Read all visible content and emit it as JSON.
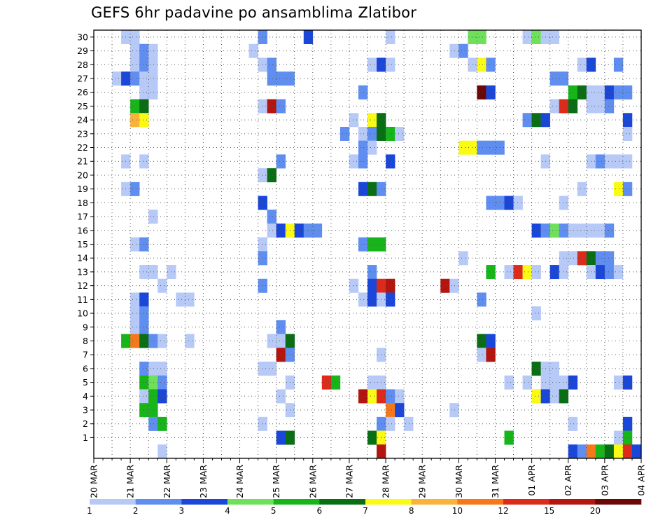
{
  "chart_data": {
    "type": "heatmap",
    "title": "GEFS 6hr padavine po ansamblima Zlatibor",
    "xlabel": "",
    "ylabel": "",
    "x_ticks": [
      "20 MAR",
      "21 MAR",
      "22 MAR",
      "23 MAR",
      "24 MAR",
      "25 MAR",
      "26 MAR",
      "27 MAR",
      "28 MAR",
      "29 MAR",
      "30 MAR",
      "31 MAR",
      "01 APR",
      "02 APR",
      "03 APR",
      "04 APR"
    ],
    "x_range": [
      "20 MAR 00",
      "04 APR 00"
    ],
    "steps_per_day": 4,
    "y_ticks": [
      1,
      2,
      3,
      4,
      5,
      6,
      7,
      8,
      9,
      10,
      11,
      12,
      13,
      14,
      15,
      16,
      17,
      18,
      19,
      20,
      21,
      22,
      23,
      24,
      25,
      26,
      27,
      28,
      29,
      30
    ],
    "y_range": [
      0,
      30
    ],
    "grid": true,
    "legend": {
      "placement": "bottom",
      "labels": [
        "1",
        "2",
        "3",
        "4",
        "5",
        "6",
        "7",
        "8",
        "10",
        "12",
        "15",
        "20"
      ],
      "colors": [
        "#b7c9f7",
        "#5f8ef0",
        "#1b47d9",
        "#6fe05a",
        "#17b51a",
        "#0a6e14",
        "#fafa14",
        "#fbb23a",
        "#f5781a",
        "#dc2a1b",
        "#b3150f",
        "#6b0707"
      ]
    },
    "cells_note": "each cell: [member, 6hr step index from 20 MAR 00, color level index]",
    "cells": [
      [
        30,
        3,
        0
      ],
      [
        30,
        4,
        0
      ],
      [
        30,
        18,
        1
      ],
      [
        30,
        23,
        2
      ],
      [
        30,
        32,
        0
      ],
      [
        30,
        41,
        3
      ],
      [
        30,
        42,
        3
      ],
      [
        30,
        47,
        0
      ],
      [
        30,
        48,
        3
      ],
      [
        30,
        49,
        0
      ],
      [
        30,
        50,
        0
      ],
      [
        29,
        4,
        0
      ],
      [
        29,
        5,
        1
      ],
      [
        29,
        6,
        0
      ],
      [
        29,
        17,
        0
      ],
      [
        29,
        39,
        0
      ],
      [
        29,
        40,
        1
      ],
      [
        28,
        4,
        0
      ],
      [
        28,
        5,
        1
      ],
      [
        28,
        6,
        0
      ],
      [
        28,
        18,
        0
      ],
      [
        28,
        19,
        1
      ],
      [
        28,
        30,
        0
      ],
      [
        28,
        31,
        2
      ],
      [
        28,
        32,
        0
      ],
      [
        28,
        41,
        0
      ],
      [
        28,
        42,
        6
      ],
      [
        28,
        43,
        1
      ],
      [
        28,
        53,
        0
      ],
      [
        28,
        54,
        2
      ],
      [
        28,
        57,
        1
      ],
      [
        27,
        2,
        0
      ],
      [
        27,
        3,
        2
      ],
      [
        27,
        4,
        1
      ],
      [
        27,
        5,
        0
      ],
      [
        27,
        6,
        0
      ],
      [
        27,
        19,
        1
      ],
      [
        27,
        20,
        1
      ],
      [
        27,
        21,
        1
      ],
      [
        27,
        50,
        1
      ],
      [
        27,
        51,
        1
      ],
      [
        26,
        6,
        0
      ],
      [
        26,
        5,
        0
      ],
      [
        26,
        29,
        1
      ],
      [
        26,
        42,
        11
      ],
      [
        26,
        43,
        2
      ],
      [
        26,
        52,
        4
      ],
      [
        26,
        53,
        5
      ],
      [
        26,
        54,
        0
      ],
      [
        26,
        55,
        0
      ],
      [
        26,
        56,
        2
      ],
      [
        26,
        57,
        1
      ],
      [
        26,
        58,
        1
      ],
      [
        25,
        4,
        4
      ],
      [
        25,
        5,
        5
      ],
      [
        25,
        18,
        0
      ],
      [
        25,
        19,
        10
      ],
      [
        25,
        20,
        1
      ],
      [
        25,
        50,
        0
      ],
      [
        25,
        51,
        9
      ],
      [
        25,
        52,
        5
      ],
      [
        25,
        54,
        0
      ],
      [
        25,
        55,
        0
      ],
      [
        25,
        56,
        1
      ],
      [
        24,
        4,
        7
      ],
      [
        24,
        5,
        6
      ],
      [
        24,
        28,
        0
      ],
      [
        24,
        30,
        6
      ],
      [
        24,
        31,
        5
      ],
      [
        24,
        47,
        1
      ],
      [
        24,
        48,
        5
      ],
      [
        24,
        49,
        2
      ],
      [
        24,
        58,
        2
      ],
      [
        23,
        27,
        1
      ],
      [
        23,
        29,
        0
      ],
      [
        23,
        30,
        1
      ],
      [
        23,
        31,
        5
      ],
      [
        23,
        32,
        4
      ],
      [
        23,
        33,
        0
      ],
      [
        23,
        58,
        0
      ],
      [
        22,
        29,
        1
      ],
      [
        22,
        30,
        0
      ],
      [
        22,
        40,
        6
      ],
      [
        22,
        41,
        6
      ],
      [
        22,
        42,
        1
      ],
      [
        22,
        43,
        1
      ],
      [
        22,
        44,
        1
      ],
      [
        21,
        3,
        0
      ],
      [
        21,
        5,
        0
      ],
      [
        21,
        20,
        1
      ],
      [
        21,
        28,
        0
      ],
      [
        21,
        29,
        1
      ],
      [
        21,
        32,
        2
      ],
      [
        21,
        49,
        0
      ],
      [
        21,
        54,
        0
      ],
      [
        21,
        55,
        1
      ],
      [
        21,
        56,
        0
      ],
      [
        21,
        57,
        0
      ],
      [
        21,
        58,
        0
      ],
      [
        20,
        18,
        0
      ],
      [
        20,
        19,
        5
      ],
      [
        19,
        3,
        0
      ],
      [
        19,
        4,
        1
      ],
      [
        19,
        29,
        2
      ],
      [
        19,
        30,
        5
      ],
      [
        19,
        31,
        1
      ],
      [
        19,
        53,
        0
      ],
      [
        19,
        57,
        6
      ],
      [
        19,
        58,
        1
      ],
      [
        18,
        18,
        2
      ],
      [
        18,
        43,
        1
      ],
      [
        18,
        44,
        1
      ],
      [
        18,
        45,
        2
      ],
      [
        18,
        46,
        0
      ],
      [
        18,
        51,
        0
      ],
      [
        17,
        6,
        0
      ],
      [
        17,
        19,
        1
      ],
      [
        16,
        19,
        0
      ],
      [
        16,
        20,
        2
      ],
      [
        16,
        21,
        6
      ],
      [
        16,
        22,
        2
      ],
      [
        16,
        23,
        1
      ],
      [
        16,
        24,
        1
      ],
      [
        16,
        48,
        2
      ],
      [
        16,
        49,
        1
      ],
      [
        16,
        50,
        3
      ],
      [
        16,
        51,
        1
      ],
      [
        16,
        52,
        0
      ],
      [
        16,
        53,
        0
      ],
      [
        16,
        54,
        0
      ],
      [
        16,
        55,
        0
      ],
      [
        16,
        56,
        1
      ],
      [
        15,
        4,
        0
      ],
      [
        15,
        5,
        1
      ],
      [
        15,
        18,
        0
      ],
      [
        15,
        29,
        1
      ],
      [
        15,
        30,
        4
      ],
      [
        15,
        31,
        4
      ],
      [
        14,
        18,
        1
      ],
      [
        14,
        40,
        0
      ],
      [
        14,
        51,
        0
      ],
      [
        14,
        52,
        0
      ],
      [
        14,
        53,
        9
      ],
      [
        14,
        54,
        5
      ],
      [
        14,
        55,
        1
      ],
      [
        14,
        56,
        1
      ],
      [
        13,
        5,
        0
      ],
      [
        13,
        6,
        0
      ],
      [
        13,
        8,
        0
      ],
      [
        13,
        30,
        1
      ],
      [
        13,
        43,
        4
      ],
      [
        13,
        45,
        0
      ],
      [
        13,
        46,
        9
      ],
      [
        13,
        47,
        6
      ],
      [
        13,
        48,
        0
      ],
      [
        13,
        50,
        2
      ],
      [
        13,
        51,
        0
      ],
      [
        13,
        54,
        0
      ],
      [
        13,
        55,
        2
      ],
      [
        13,
        56,
        1
      ],
      [
        13,
        57,
        0
      ],
      [
        12,
        7,
        0
      ],
      [
        12,
        18,
        1
      ],
      [
        12,
        28,
        0
      ],
      [
        12,
        30,
        2
      ],
      [
        12,
        31,
        9
      ],
      [
        12,
        32,
        10
      ],
      [
        12,
        38,
        10
      ],
      [
        12,
        39,
        0
      ],
      [
        11,
        4,
        0
      ],
      [
        11,
        5,
        2
      ],
      [
        11,
        9,
        0
      ],
      [
        11,
        10,
        0
      ],
      [
        11,
        29,
        0
      ],
      [
        11,
        30,
        2
      ],
      [
        11,
        31,
        0
      ],
      [
        11,
        32,
        2
      ],
      [
        11,
        42,
        1
      ],
      [
        10,
        4,
        0
      ],
      [
        10,
        5,
        1
      ],
      [
        10,
        48,
        0
      ],
      [
        9,
        4,
        0
      ],
      [
        9,
        5,
        1
      ],
      [
        9,
        20,
        1
      ],
      [
        8,
        3,
        4
      ],
      [
        8,
        4,
        8
      ],
      [
        8,
        5,
        5
      ],
      [
        8,
        6,
        1
      ],
      [
        8,
        7,
        0
      ],
      [
        8,
        10,
        0
      ],
      [
        8,
        19,
        0
      ],
      [
        8,
        20,
        0
      ],
      [
        8,
        21,
        5
      ],
      [
        8,
        42,
        5
      ],
      [
        8,
        43,
        2
      ],
      [
        7,
        20,
        10
      ],
      [
        7,
        21,
        1
      ],
      [
        7,
        31,
        0
      ],
      [
        7,
        42,
        0
      ],
      [
        7,
        43,
        10
      ],
      [
        6,
        5,
        1
      ],
      [
        6,
        6,
        0
      ],
      [
        6,
        7,
        0
      ],
      [
        6,
        18,
        0
      ],
      [
        6,
        19,
        0
      ],
      [
        6,
        48,
        5
      ],
      [
        6,
        49,
        0
      ],
      [
        6,
        50,
        0
      ],
      [
        5,
        5,
        4
      ],
      [
        5,
        6,
        3
      ],
      [
        5,
        7,
        1
      ],
      [
        5,
        21,
        0
      ],
      [
        5,
        25,
        9
      ],
      [
        5,
        26,
        4
      ],
      [
        5,
        30,
        0
      ],
      [
        5,
        31,
        0
      ],
      [
        5,
        45,
        0
      ],
      [
        5,
        47,
        0
      ],
      [
        5,
        49,
        0
      ],
      [
        5,
        50,
        0
      ],
      [
        5,
        51,
        0
      ],
      [
        5,
        52,
        2
      ],
      [
        5,
        57,
        0
      ],
      [
        5,
        58,
        2
      ],
      [
        4,
        5,
        0
      ],
      [
        4,
        6,
        4
      ],
      [
        4,
        7,
        2
      ],
      [
        4,
        20,
        0
      ],
      [
        4,
        29,
        10
      ],
      [
        4,
        30,
        6
      ],
      [
        4,
        31,
        9
      ],
      [
        4,
        32,
        1
      ],
      [
        4,
        33,
        0
      ],
      [
        4,
        48,
        6
      ],
      [
        4,
        49,
        2
      ],
      [
        4,
        50,
        0
      ],
      [
        4,
        51,
        5
      ],
      [
        3,
        5,
        4
      ],
      [
        3,
        6,
        4
      ],
      [
        3,
        21,
        0
      ],
      [
        3,
        32,
        8
      ],
      [
        3,
        33,
        2
      ],
      [
        3,
        39,
        0
      ],
      [
        2,
        6,
        1
      ],
      [
        2,
        7,
        4
      ],
      [
        2,
        18,
        0
      ],
      [
        2,
        31,
        1
      ],
      [
        2,
        32,
        0
      ],
      [
        2,
        34,
        0
      ],
      [
        2,
        52,
        0
      ],
      [
        2,
        58,
        2
      ],
      [
        1,
        20,
        2
      ],
      [
        1,
        21,
        5
      ],
      [
        1,
        30,
        5
      ],
      [
        1,
        31,
        6
      ],
      [
        1,
        45,
        4
      ],
      [
        1,
        57,
        0
      ],
      [
        1,
        58,
        4
      ],
      [
        0,
        7,
        0
      ],
      [
        0,
        31,
        10
      ],
      [
        0,
        52,
        2
      ],
      [
        0,
        53,
        1
      ],
      [
        0,
        54,
        8
      ],
      [
        0,
        55,
        4
      ],
      [
        0,
        56,
        5
      ],
      [
        0,
        57,
        6
      ],
      [
        0,
        58,
        9
      ],
      [
        0,
        59,
        2
      ]
    ]
  }
}
